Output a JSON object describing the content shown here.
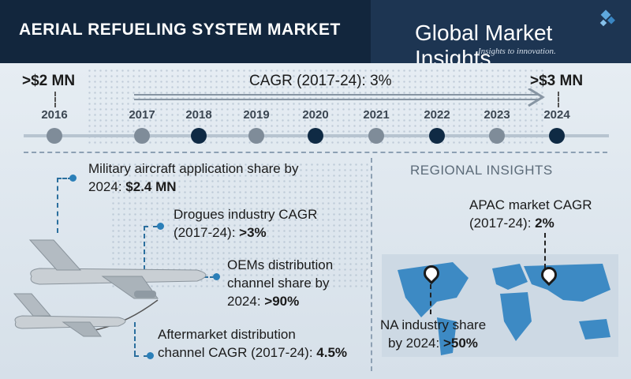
{
  "header": {
    "title": "AERIAL REFUELING SYSTEM MARKET",
    "logo_name": "Global Market Insights",
    "logo_tagline": "Insights to innovation."
  },
  "timeline": {
    "start_value": ">$2 MN",
    "end_value": ">$3 MN",
    "cagr_label": "CAGR (2017-24): 3%"
  },
  "chart_data": {
    "type": "table",
    "title": "AERIAL REFUELING SYSTEM MARKET",
    "years": [
      "2016",
      "2017",
      "2018",
      "2019",
      "2020",
      "2021",
      "2022",
      "2023",
      "2024"
    ],
    "market_size": [
      {
        "year": "2016",
        "value": ">$2 MN"
      },
      {
        "year": "2024",
        "value": ">$3 MN"
      }
    ],
    "cagr_2017_24": "3%",
    "facts": [
      {
        "text": "Military aircraft application share by 2024:",
        "value": "$2.4 MN"
      },
      {
        "text": "Drogues industry CAGR (2017-24):",
        "value": ">3%"
      },
      {
        "text": "OEMs distribution channel share by 2024:",
        "value": ">90%"
      },
      {
        "text": "Aftermarket distribution channel CAGR (2017-24):",
        "value": "4.5%"
      },
      {
        "text": "APAC market CAGR (2017-24):",
        "value": "2%"
      },
      {
        "text": "NA industry share by 2024:",
        "value": ">50%"
      }
    ]
  },
  "labels": {
    "military_l1": "Military aircraft application share by",
    "military_l2": "2024:",
    "military_val": "$2.4 MN",
    "drogues_l1": "Drogues industry CAGR",
    "drogues_l2": "(2017-24):",
    "drogues_val": ">3%",
    "oems_l1": "OEMs distribution",
    "oems_l2": "channel share by",
    "oems_l3": "2024:",
    "oems_val": ">90%",
    "after_l1": "Aftermarket distribution",
    "after_l2": "channel CAGR (2017-24):",
    "after_val": "4.5%",
    "regional": "REGIONAL INSIGHTS",
    "apac_l1": "APAC market CAGR",
    "apac_l2": "(2017-24):",
    "apac_val": "2%",
    "na_l1": "NA industry share",
    "na_l2": "by 2024:",
    "na_val": ">50%"
  },
  "colors": {
    "header": "#1d3552",
    "accent": "#2b7fb8",
    "dot_light": "#7f8c99",
    "dot_dark": "#0f2a44"
  }
}
